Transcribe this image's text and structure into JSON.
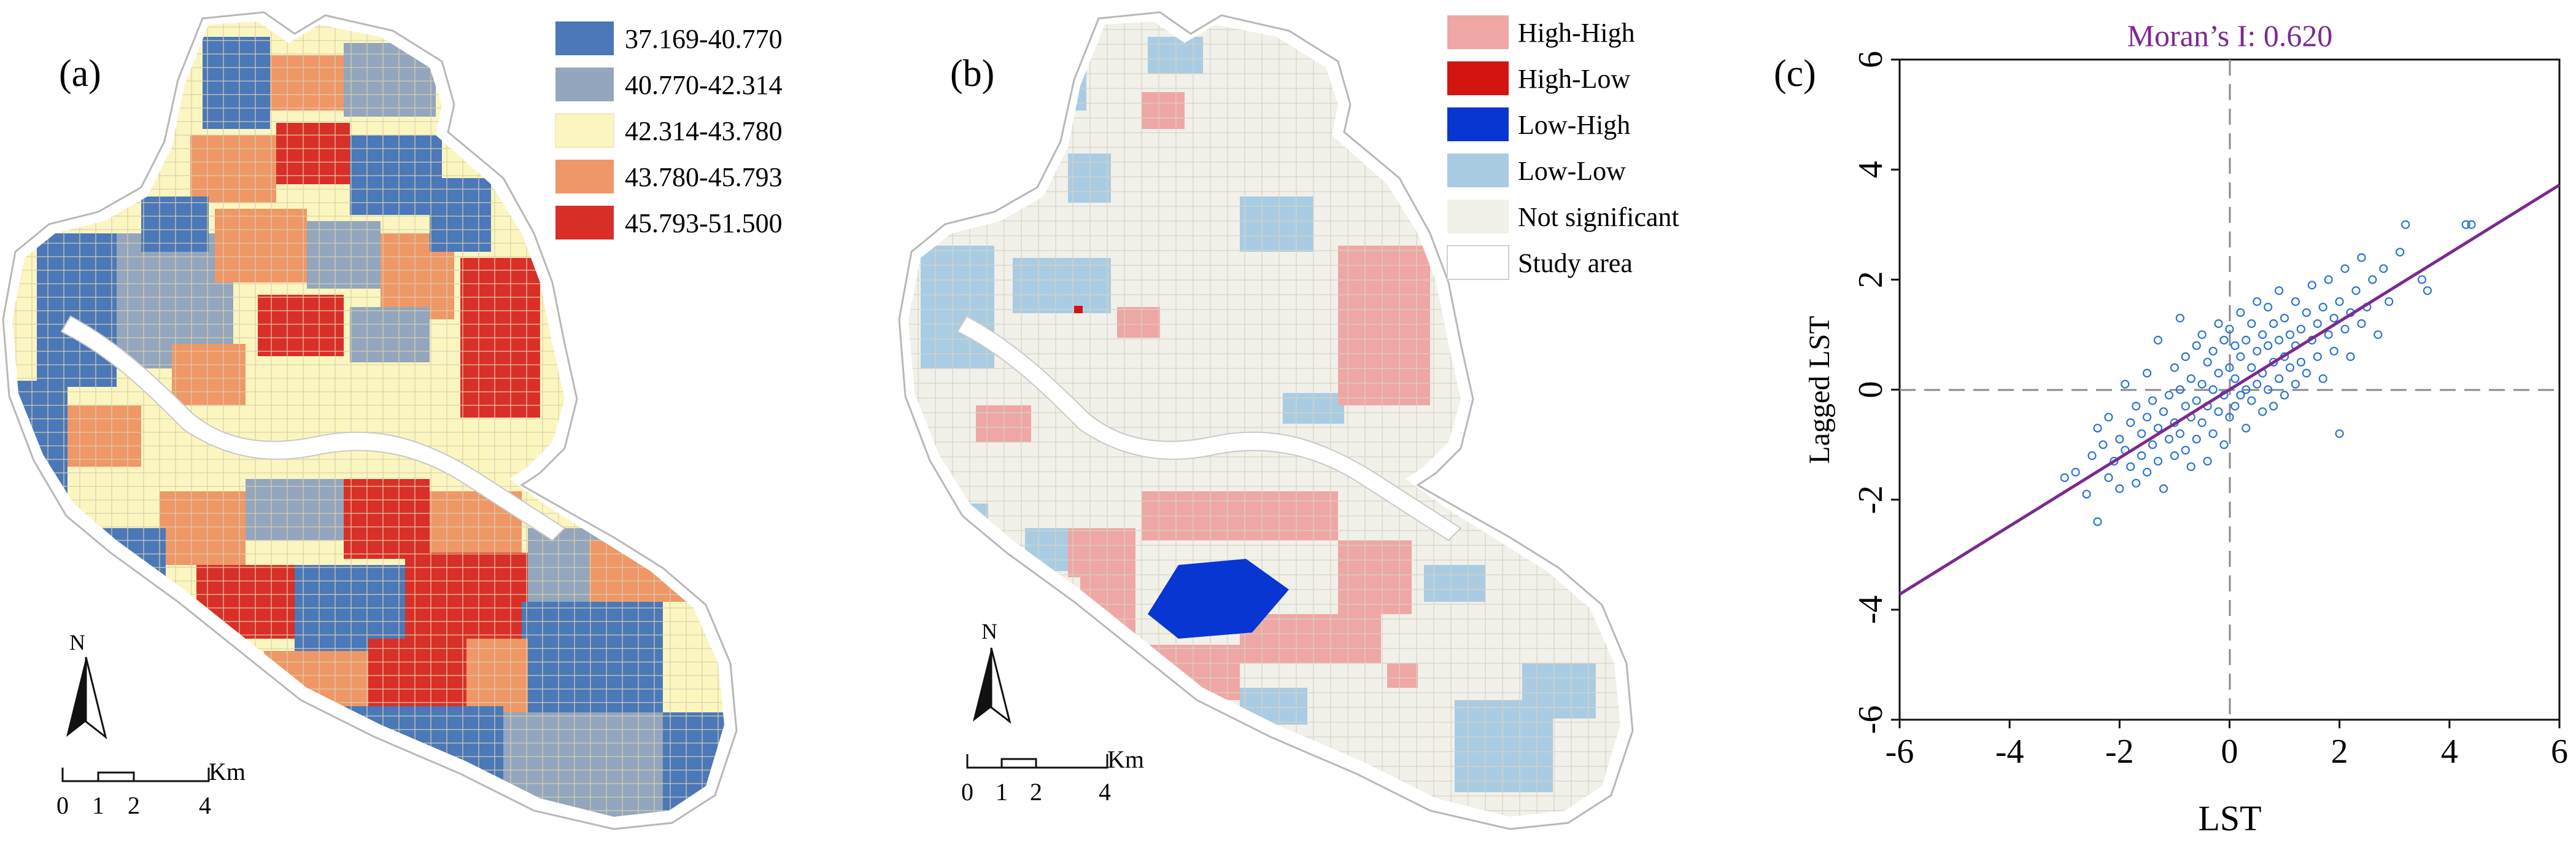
{
  "panel_a": {
    "label": "(a)",
    "legend": [
      {
        "label": "37.169-40.770",
        "color": "#4a78b8"
      },
      {
        "label": "40.770-42.314",
        "color": "#93a6bd"
      },
      {
        "label": "42.314-43.780",
        "color": "#fbf6bf"
      },
      {
        "label": "43.780-45.793",
        "color": "#ef9766"
      },
      {
        "label": "45.793-51.500",
        "color": "#d92f28"
      }
    ],
    "north": "N",
    "scale": {
      "unit": "Km",
      "ticks": [
        "0",
        "1",
        "2",
        "4"
      ]
    }
  },
  "panel_b": {
    "label": "(b)",
    "legend": [
      {
        "label": "High-High",
        "color": "#eea7a4"
      },
      {
        "label": "High-Low",
        "color": "#d4140f"
      },
      {
        "label": "Low-High",
        "color": "#0836d2"
      },
      {
        "label": "Low-Low",
        "color": "#a9cce3"
      },
      {
        "label": "Not significant",
        "color": "#f1f0e9"
      },
      {
        "label": "Study area",
        "color": "#ffffff"
      }
    ],
    "north": "N",
    "scale": {
      "unit": "Km",
      "ticks": [
        "0",
        "1",
        "2",
        "4"
      ]
    }
  },
  "chart_data": {
    "type": "scatter",
    "label": "(c)",
    "title": "Moran’s I: 0.620",
    "xlabel": "LST",
    "ylabel": "Lagged LST",
    "xlim": [
      -6,
      6
    ],
    "ylim": [
      -6,
      6
    ],
    "xticks": [
      "-6",
      "-4",
      "-2",
      "0",
      "2",
      "4",
      "6"
    ],
    "yticks": [
      "-6",
      "-4",
      "-2",
      "0",
      "2",
      "4",
      "6"
    ],
    "grid": false,
    "regression": {
      "slope": 0.62,
      "intercept": 0.0,
      "color": "#7b2a90"
    },
    "point_color": "#2a74d6",
    "points": [
      [
        -3.0,
        -1.6
      ],
      [
        -2.8,
        -1.5
      ],
      [
        -2.6,
        -1.9
      ],
      [
        -2.5,
        -1.2
      ],
      [
        -2.4,
        -2.4
      ],
      [
        -2.4,
        -0.7
      ],
      [
        -2.3,
        -1.0
      ],
      [
        -2.2,
        -1.6
      ],
      [
        -2.2,
        -0.5
      ],
      [
        -2.1,
        -1.3
      ],
      [
        -2.0,
        -0.9
      ],
      [
        -2.0,
        -1.8
      ],
      [
        -1.9,
        0.1
      ],
      [
        -1.9,
        -1.1
      ],
      [
        -1.8,
        -0.6
      ],
      [
        -1.8,
        -1.4
      ],
      [
        -1.7,
        -0.3
      ],
      [
        -1.7,
        -1.7
      ],
      [
        -1.6,
        -0.8
      ],
      [
        -1.6,
        -1.2
      ],
      [
        -1.5,
        0.3
      ],
      [
        -1.5,
        -0.5
      ],
      [
        -1.5,
        -1.5
      ],
      [
        -1.4,
        -1.0
      ],
      [
        -1.4,
        -0.2
      ],
      [
        -1.3,
        -0.7
      ],
      [
        -1.3,
        -1.3
      ],
      [
        -1.3,
        0.9
      ],
      [
        -1.2,
        -0.4
      ],
      [
        -1.2,
        -1.8
      ],
      [
        -1.1,
        -0.1
      ],
      [
        -1.1,
        -0.9
      ],
      [
        -1.0,
        0.4
      ],
      [
        -1.0,
        -0.6
      ],
      [
        -1.0,
        -1.2
      ],
      [
        -0.9,
        0.0
      ],
      [
        -0.9,
        -0.8
      ],
      [
        -0.9,
        1.3
      ],
      [
        -0.8,
        -0.3
      ],
      [
        -0.8,
        -1.1
      ],
      [
        -0.8,
        0.6
      ],
      [
        -0.7,
        -0.5
      ],
      [
        -0.7,
        0.2
      ],
      [
        -0.7,
        -1.4
      ],
      [
        -0.6,
        0.8
      ],
      [
        -0.6,
        -0.2
      ],
      [
        -0.6,
        -0.9
      ],
      [
        -0.5,
        0.1
      ],
      [
        -0.5,
        -0.6
      ],
      [
        -0.5,
        1.0
      ],
      [
        -0.4,
        0.5
      ],
      [
        -0.4,
        -0.3
      ],
      [
        -0.4,
        -1.3
      ],
      [
        -0.3,
        0.0
      ],
      [
        -0.3,
        0.7
      ],
      [
        -0.3,
        -0.8
      ],
      [
        -0.2,
        0.3
      ],
      [
        -0.2,
        -0.4
      ],
      [
        -0.2,
        1.2
      ],
      [
        -0.1,
        0.9
      ],
      [
        -0.1,
        -0.1
      ],
      [
        -0.1,
        -1.0
      ],
      [
        0.0,
        0.4
      ],
      [
        0.0,
        -0.5
      ],
      [
        0.0,
        1.1
      ],
      [
        0.1,
        0.2
      ],
      [
        0.1,
        -0.3
      ],
      [
        0.1,
        0.8
      ],
      [
        0.2,
        0.6
      ],
      [
        0.2,
        -0.1
      ],
      [
        0.2,
        1.4
      ],
      [
        0.3,
        0.0
      ],
      [
        0.3,
        0.9
      ],
      [
        0.3,
        -0.7
      ],
      [
        0.4,
        0.4
      ],
      [
        0.4,
        1.2
      ],
      [
        0.4,
        -0.2
      ],
      [
        0.5,
        0.7
      ],
      [
        0.5,
        0.1
      ],
      [
        0.5,
        1.6
      ],
      [
        0.6,
        0.3
      ],
      [
        0.6,
        1.0
      ],
      [
        0.6,
        -0.4
      ],
      [
        0.7,
        0.8
      ],
      [
        0.7,
        0.0
      ],
      [
        0.7,
        1.5
      ],
      [
        0.8,
        0.5
      ],
      [
        0.8,
        1.2
      ],
      [
        0.8,
        -0.3
      ],
      [
        0.9,
        0.9
      ],
      [
        0.9,
        0.2
      ],
      [
        0.9,
        1.8
      ],
      [
        1.0,
        0.6
      ],
      [
        1.0,
        1.3
      ],
      [
        1.0,
        -0.1
      ],
      [
        1.1,
        0.4
      ],
      [
        1.1,
        1.0
      ],
      [
        1.2,
        0.8
      ],
      [
        1.2,
        1.6
      ],
      [
        1.2,
        0.1
      ],
      [
        1.3,
        1.1
      ],
      [
        1.3,
        0.5
      ],
      [
        1.4,
        1.4
      ],
      [
        1.4,
        0.3
      ],
      [
        1.5,
        0.9
      ],
      [
        1.5,
        1.9
      ],
      [
        1.6,
        1.2
      ],
      [
        1.6,
        0.6
      ],
      [
        1.7,
        1.5
      ],
      [
        1.7,
        0.2
      ],
      [
        1.8,
        1.0
      ],
      [
        1.8,
        2.0
      ],
      [
        1.9,
        1.3
      ],
      [
        1.9,
        0.7
      ],
      [
        2.0,
        1.6
      ],
      [
        2.0,
        -0.8
      ],
      [
        2.1,
        1.1
      ],
      [
        2.1,
        2.2
      ],
      [
        2.2,
        1.4
      ],
      [
        2.2,
        0.6
      ],
      [
        2.3,
        1.8
      ],
      [
        2.4,
        1.2
      ],
      [
        2.4,
        2.4
      ],
      [
        2.5,
        1.5
      ],
      [
        2.6,
        2.0
      ],
      [
        2.7,
        1.0
      ],
      [
        2.8,
        2.2
      ],
      [
        2.9,
        1.6
      ],
      [
        3.1,
        2.5
      ],
      [
        3.2,
        3.0
      ],
      [
        3.5,
        2.0
      ],
      [
        3.6,
        1.8
      ],
      [
        4.3,
        3.0
      ],
      [
        4.4,
        3.0
      ]
    ]
  }
}
